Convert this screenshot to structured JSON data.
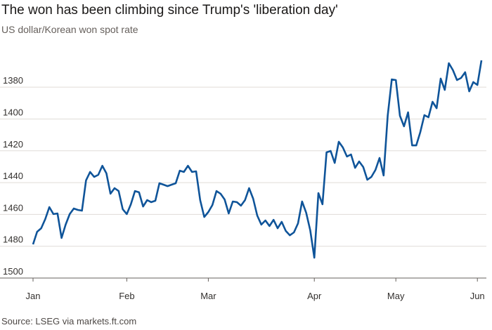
{
  "chart_data": {
    "type": "line",
    "title": "The won has been climbing since Trump's 'liberation day'",
    "subtitle": "US dollar/Korean won spot rate",
    "source": "Source: LSEG via markets.ft.com",
    "categories": [
      "Jan",
      null,
      null,
      null,
      null,
      null,
      null,
      null,
      null,
      null,
      null,
      null,
      null,
      null,
      null,
      null,
      null,
      null,
      null,
      null,
      null,
      null,
      null,
      "Feb",
      null,
      null,
      null,
      null,
      null,
      null,
      null,
      null,
      null,
      null,
      null,
      null,
      null,
      null,
      null,
      null,
      null,
      null,
      null,
      "Mar",
      null,
      null,
      null,
      null,
      null,
      null,
      null,
      null,
      null,
      null,
      null,
      null,
      null,
      null,
      null,
      null,
      null,
      null,
      null,
      null,
      null,
      null,
      null,
      null,
      null,
      "Apr",
      null,
      null,
      null,
      null,
      null,
      null,
      null,
      null,
      null,
      null,
      null,
      null,
      null,
      null,
      null,
      null,
      null,
      null,
      null,
      "May",
      null,
      null,
      null,
      null,
      null,
      null,
      null,
      null,
      null,
      null,
      null,
      null,
      null,
      null,
      null,
      null,
      null,
      null,
      null,
      "Jun",
      null
    ],
    "series": [
      {
        "name": "USD/KRW",
        "color": "#0f5499",
        "values": [
          1478.8,
          1470.9,
          1468.7,
          1462.9,
          1455.4,
          1459.8,
          1459.4,
          1474.8,
          1466.4,
          1459.8,
          1456.3,
          1457.2,
          1457.6,
          1438.6,
          1433.3,
          1436.4,
          1435.1,
          1429.4,
          1434.2,
          1447,
          1443.5,
          1445.3,
          1456.7,
          1459.8,
          1453.6,
          1445.3,
          1446.1,
          1455,
          1451,
          1452.3,
          1451.4,
          1440.4,
          1441.3,
          1442.2,
          1441.3,
          1440.4,
          1432.5,
          1433.3,
          1429.4,
          1433.3,
          1432.9,
          1451,
          1461.6,
          1458.5,
          1454.1,
          1445.3,
          1447,
          1450.6,
          1459.4,
          1451.9,
          1452.3,
          1454.5,
          1451,
          1443.5,
          1450.1,
          1460.7,
          1466.4,
          1463.8,
          1467.3,
          1463.4,
          1468.7,
          1464.7,
          1470.4,
          1473.1,
          1471.3,
          1465.6,
          1451.9,
          1458.9,
          1470,
          1487.2,
          1446.6,
          1453.6,
          1421,
          1420.1,
          1427.6,
          1414.3,
          1417.9,
          1423.6,
          1422.3,
          1430.7,
          1426.7,
          1430.2,
          1438.2,
          1436.4,
          1432,
          1424.5,
          1435.5,
          1398,
          1375.1,
          1375.5,
          1398,
          1404.6,
          1395.8,
          1416.6,
          1416.6,
          1408.2,
          1397.6,
          1398.9,
          1389.2,
          1393.2,
          1374.6,
          1381.7,
          1364.9,
          1369.3,
          1375.5,
          1374.2,
          1370.6,
          1382.6,
          1376.8,
          1378.6,
          1363.1
        ]
      }
    ],
    "ylim": [
      1500,
      1362
    ],
    "yticks": [
      1380,
      1400,
      1420,
      1440,
      1460,
      1480,
      1500
    ],
    "grid": true
  }
}
